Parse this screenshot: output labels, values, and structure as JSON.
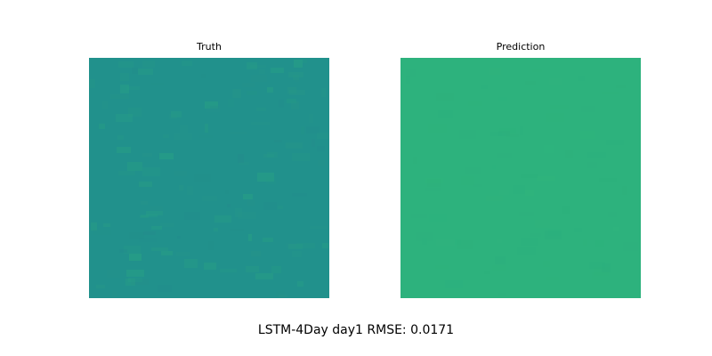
{
  "caption": "LSTM-4Day day1 RMSE: 0.0171",
  "chart_data": [
    {
      "type": "heatmap",
      "title": "Truth",
      "colormap": "viridis",
      "dominant_color": "#21918c",
      "color_range": [
        "#24868e",
        "#2db27d"
      ],
      "grid": false,
      "axes": "off"
    },
    {
      "type": "heatmap",
      "title": "Prediction",
      "colormap": "viridis",
      "dominant_color": "#2db27d",
      "color_range": [
        "#2aab80",
        "#33b77a"
      ],
      "grid": false,
      "axes": "off"
    }
  ]
}
